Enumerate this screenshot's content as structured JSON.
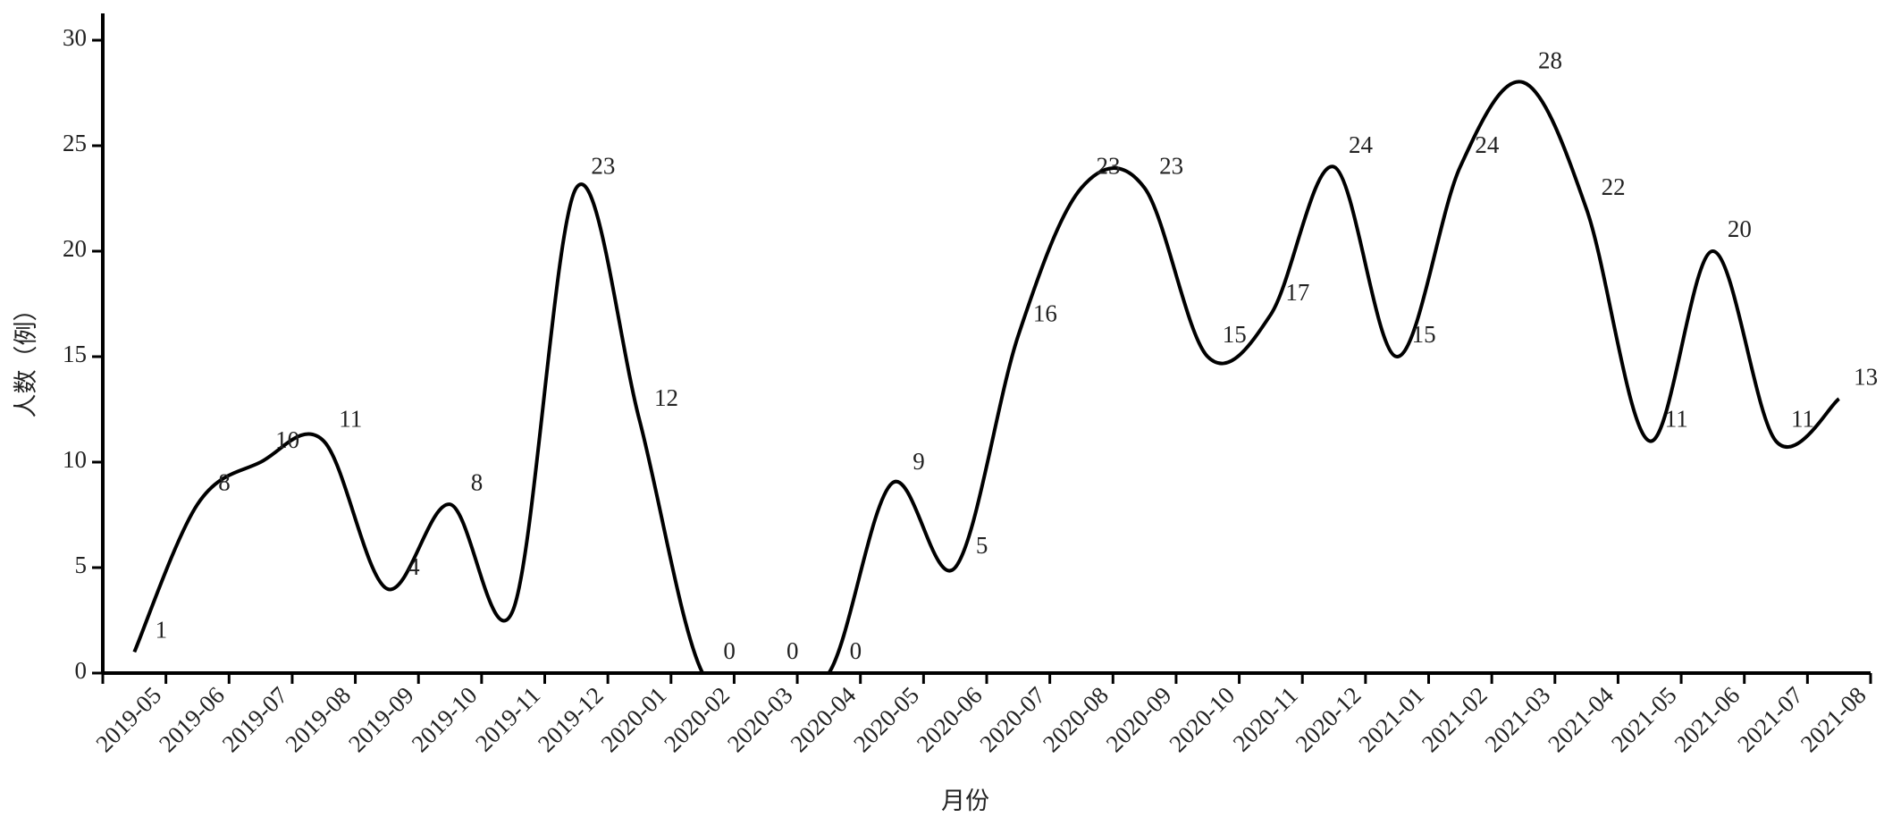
{
  "chart_data": {
    "type": "line",
    "x_label": "月份",
    "y_label": "人数（例）",
    "categories": [
      "2019-05",
      "2019-06",
      "2019-07",
      "2019-08",
      "2019-09",
      "2019-10",
      "2019-11",
      "2019-12",
      "2020-01",
      "2020-02",
      "2020-03",
      "2020-04",
      "2020-05",
      "2020-06",
      "2020-07",
      "2020-08",
      "2020-09",
      "2020-10",
      "2020-11",
      "2020-12",
      "2021-01",
      "2021-02",
      "2021-03",
      "2021-04",
      "2021-05",
      "2021-06",
      "2021-07",
      "2021-08"
    ],
    "series": [
      {
        "color": "#000000",
        "values": [
          1,
          8,
          10,
          11,
          4,
          8,
          3,
          23,
          12,
          0,
          0,
          0,
          9,
          5,
          16,
          23,
          23,
          15,
          17,
          24,
          15,
          24,
          28,
          22,
          11,
          20,
          11,
          13
        ],
        "value_labels": [
          "1",
          "8",
          "10",
          "11",
          "4",
          "8",
          null,
          "23",
          "12",
          "0",
          "0",
          "0",
          "9",
          "5",
          "16",
          "23",
          "23",
          "15",
          "17",
          "24",
          "15",
          "24",
          "28",
          "22",
          "11",
          "20",
          "11",
          "13"
        ]
      }
    ],
    "ylim": [
      0,
      30
    ],
    "yticks": [
      0,
      5,
      10,
      15,
      20,
      25,
      30
    ],
    "grid": false
  }
}
